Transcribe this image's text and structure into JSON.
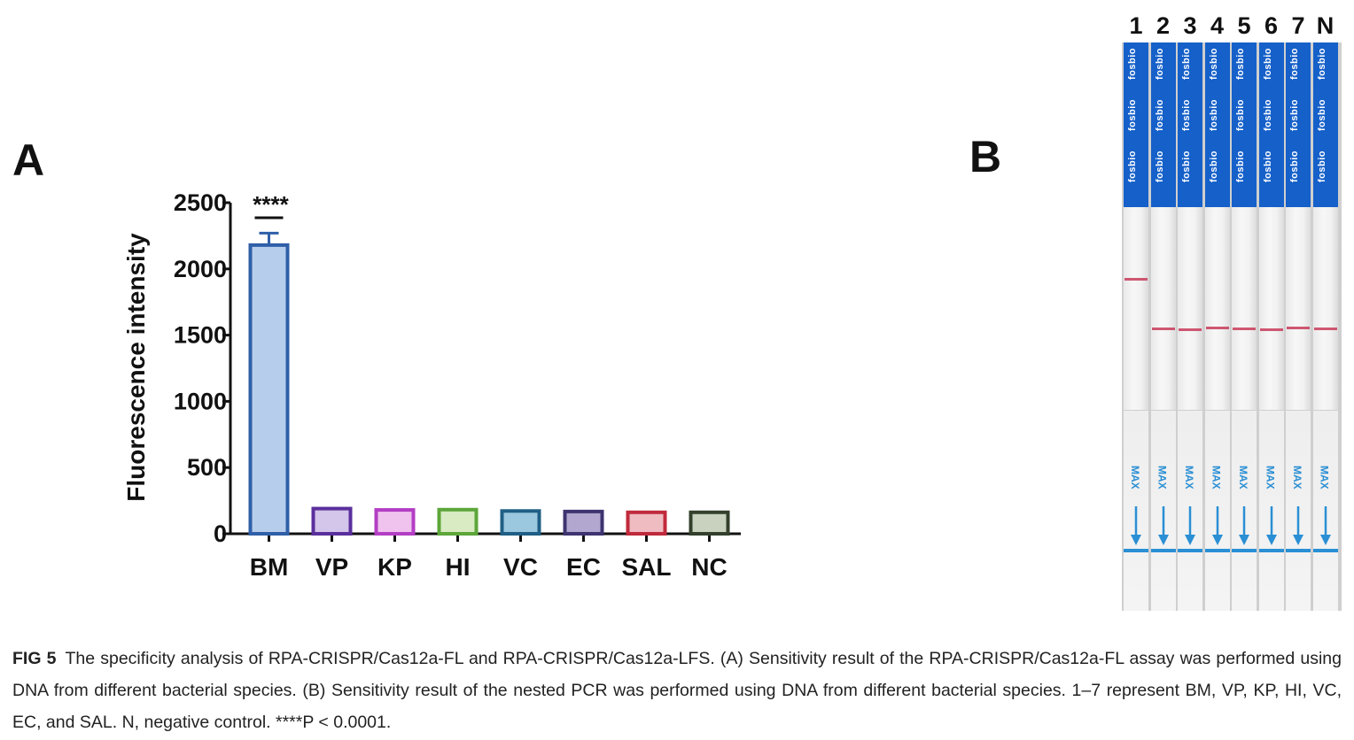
{
  "panel_a": {
    "letter": "A"
  },
  "panel_b": {
    "letter": "B"
  },
  "chart_data": {
    "type": "bar",
    "ylabel": "Fluorescence intensity",
    "xlabel": "",
    "ylim": [
      0,
      2500
    ],
    "yticks": [
      "0",
      "500",
      "1000",
      "1500",
      "2000",
      "2500"
    ],
    "categories": [
      "BM",
      "VP",
      "KP",
      "HI",
      "VC",
      "EC",
      "SAL",
      "NC"
    ],
    "values": [
      2180,
      190,
      180,
      182,
      172,
      168,
      162,
      162
    ],
    "errors": [
      90,
      5,
      5,
      5,
      5,
      5,
      5,
      5
    ],
    "colors": {
      "fill": [
        "#b7cdec",
        "#d4c5ea",
        "#f0c2ee",
        "#d8ebc3",
        "#9bc8df",
        "#b1a7cf",
        "#efbcc2",
        "#c8d2bf"
      ],
      "stroke": [
        "#2f5fa8",
        "#5a2f9c",
        "#b33ec4",
        "#5ca63a",
        "#1f5f86",
        "#3e3470",
        "#c02a3c",
        "#33402c"
      ]
    },
    "significance": {
      "bar": "BM",
      "label": "****"
    },
    "grid": false,
    "legend": "none"
  },
  "strips": {
    "lanes": [
      "1",
      "2",
      "3",
      "4",
      "5",
      "6",
      "7",
      "N"
    ],
    "brand": "fosbio",
    "pad_text": "MAX",
    "test_line": [
      true,
      false,
      false,
      false,
      false,
      false,
      false,
      false
    ],
    "control_line": [
      false,
      true,
      true,
      true,
      true,
      true,
      true,
      true
    ]
  },
  "caption": {
    "label": "FIG 5",
    "text": "The specificity analysis of RPA-CRISPR/Cas12a-FL and RPA-CRISPR/Cas12a-LFS. (A) Sensitivity result of the RPA-CRISPR/Cas12a-FL assay was performed using DNA from different bacterial species. (B) Sensitivity result of the nested PCR was performed using DNA from different bacterial species. 1–7 represent BM, VP, KP, HI, VC, EC, and SAL. N, negative control. ****P < 0.0001."
  }
}
